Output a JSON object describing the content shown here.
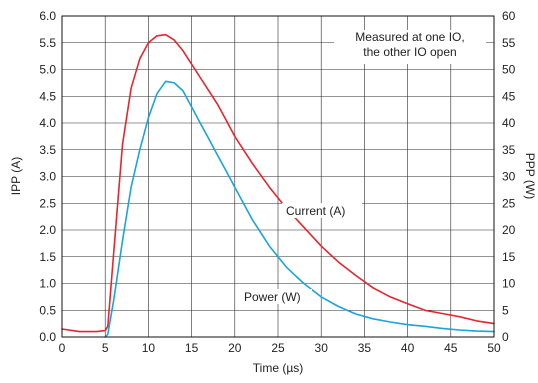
{
  "chart_data": {
    "type": "line",
    "xlabel": "Time (µs)",
    "ylabel": "IPP (A)",
    "y2label": "PPP (W)",
    "xlim": [
      0,
      50
    ],
    "ylim": [
      0,
      6
    ],
    "y2lim": [
      0,
      60
    ],
    "xticks": [
      "0",
      "5",
      "10",
      "15",
      "20",
      "25",
      "30",
      "35",
      "40",
      "45",
      "50"
    ],
    "yticks": [
      "0.0",
      "0.5",
      "1.0",
      "1.5",
      "2.0",
      "2.5",
      "3.0",
      "3.5",
      "4.0",
      "4.5",
      "5.0",
      "5.5",
      "6.0"
    ],
    "y2ticks": [
      "0",
      "5",
      "10",
      "15",
      "20",
      "25",
      "30",
      "35",
      "40",
      "45",
      "50",
      "55",
      "60"
    ],
    "grid": true,
    "annotation": [
      "Measured at one IO,",
      "the other IO open"
    ],
    "series": [
      {
        "name": "Current (A)",
        "axis": "left",
        "color": "#e8252e",
        "x": [
          0,
          2,
          4,
          5,
          5.3,
          6,
          7,
          8,
          9,
          10,
          11,
          12,
          13,
          14,
          15,
          16,
          17,
          18,
          19,
          20,
          22,
          24,
          26,
          28,
          30,
          32,
          34,
          36,
          38,
          40,
          42,
          44,
          46,
          48,
          50
        ],
        "y": [
          0.15,
          0.1,
          0.1,
          0.12,
          0.2,
          1.6,
          3.6,
          4.65,
          5.2,
          5.5,
          5.63,
          5.65,
          5.55,
          5.35,
          5.1,
          4.85,
          4.6,
          4.35,
          4.05,
          3.75,
          3.25,
          2.8,
          2.4,
          2.05,
          1.7,
          1.4,
          1.15,
          0.92,
          0.75,
          0.62,
          0.5,
          0.44,
          0.38,
          0.3,
          0.25
        ]
      },
      {
        "name": "Power (W)",
        "axis": "right",
        "color": "#1aa3e0",
        "x": [
          5,
          5.3,
          6,
          7,
          8,
          9,
          10,
          11,
          12,
          13,
          14,
          15,
          16,
          17,
          18,
          19,
          20,
          22,
          24,
          26,
          28,
          30,
          32,
          34,
          36,
          38,
          40,
          42,
          44,
          46,
          48,
          50
        ],
        "y": [
          0,
          0.5,
          7,
          18,
          28,
          35,
          41,
          45.5,
          47.8,
          47.5,
          46,
          43,
          40,
          37,
          34,
          31,
          28,
          22,
          17,
          13,
          10,
          7.5,
          5.7,
          4.3,
          3.4,
          2.8,
          2.3,
          2,
          1.6,
          1.3,
          1.1,
          1
        ]
      }
    ]
  }
}
